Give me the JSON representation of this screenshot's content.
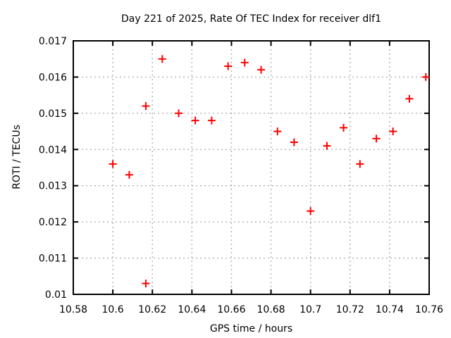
{
  "chart": {
    "title": "Day 221 of 2025, Rate Of TEC Index for receiver dlf1",
    "xlabel": "GPS time / hours",
    "ylabel": "ROTI / TECUs"
  },
  "colors": {
    "marker": "#ff0000",
    "grid": "#b0b0b0",
    "axis": "#000000",
    "background": "#ffffff",
    "text": "#000000"
  },
  "chart_data": {
    "type": "scatter",
    "title": "Day 221 of 2025, Rate Of TEC Index for receiver dlf1",
    "xlabel": "GPS time / hours",
    "ylabel": "ROTI / TECUs",
    "xlim": [
      10.58,
      10.76
    ],
    "ylim": [
      0.01,
      0.017
    ],
    "xticks": [
      10.58,
      10.6,
      10.62,
      10.64,
      10.66,
      10.68,
      10.7,
      10.72,
      10.74,
      10.76
    ],
    "xtick_labels": [
      "10.58",
      "10.6",
      "10.62",
      "10.64",
      "10.66",
      "10.68",
      "10.7",
      "10.72",
      "10.74",
      "10.76"
    ],
    "yticks": [
      0.01,
      0.011,
      0.012,
      0.013,
      0.014,
      0.015,
      0.016,
      0.017
    ],
    "ytick_labels": [
      "0.01",
      "0.011",
      "0.012",
      "0.013",
      "0.014",
      "0.015",
      "0.016",
      "0.017"
    ],
    "grid": true,
    "legend": false,
    "marker": "plus",
    "x": [
      10.6,
      10.6083,
      10.6167,
      10.6167,
      10.625,
      10.6333,
      10.6417,
      10.65,
      10.6583,
      10.6667,
      10.675,
      10.6833,
      10.6917,
      10.7,
      10.7083,
      10.7167,
      10.725,
      10.7333,
      10.7417,
      10.75,
      10.7583
    ],
    "y": [
      0.0136,
      0.0133,
      0.0103,
      0.0152,
      0.0165,
      0.015,
      0.0148,
      0.0148,
      0.0163,
      0.0164,
      0.0162,
      0.0145,
      0.0142,
      0.0123,
      0.0141,
      0.0146,
      0.0136,
      0.0143,
      0.0145,
      0.0154,
      0.016
    ]
  }
}
